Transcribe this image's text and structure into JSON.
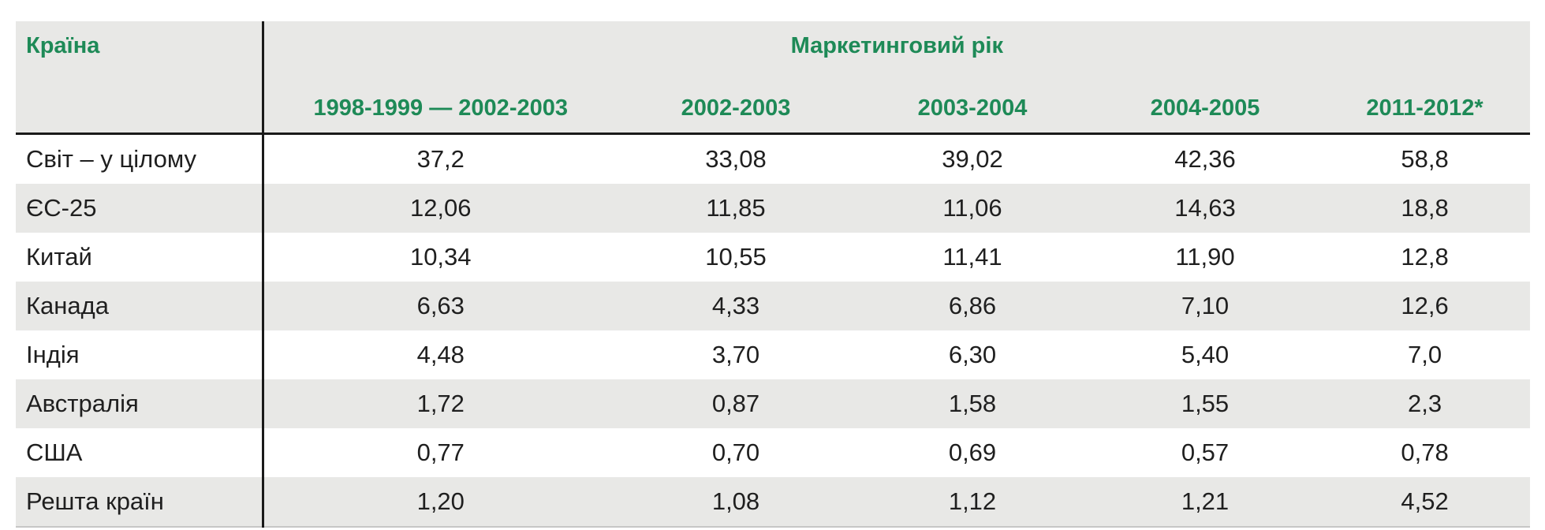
{
  "table": {
    "country_header": "Країна",
    "group_header": "Маркетинговий рік",
    "year_headers": [
      "1998-1999 — 2002-2003",
      "2002-2003",
      "2003-2004",
      "2004-2005",
      "2011-2012*"
    ],
    "rows": [
      {
        "country": "Світ – у цілому",
        "values": [
          "37,2",
          "33,08",
          "39,02",
          "42,36",
          "58,8"
        ]
      },
      {
        "country": "ЄС-25",
        "values": [
          "12,06",
          "11,85",
          "11,06",
          "14,63",
          "18,8"
        ]
      },
      {
        "country": "Китай",
        "values": [
          "10,34",
          "10,55",
          "11,41",
          "11,90",
          "12,8"
        ]
      },
      {
        "country": "Канада",
        "values": [
          "6,63",
          "4,33",
          "6,86",
          "7,10",
          "12,6"
        ]
      },
      {
        "country": "Індія",
        "values": [
          "4,48",
          "3,70",
          "6,30",
          "5,40",
          "7,0"
        ]
      },
      {
        "country": "Австралія",
        "values": [
          "1,72",
          "0,87",
          "1,58",
          "1,55",
          "2,3"
        ]
      },
      {
        "country": "США",
        "values": [
          "0,77",
          "0,70",
          "0,69",
          "0,57",
          "0,78"
        ]
      },
      {
        "country": "Решта країн",
        "values": [
          "1,20",
          "1,08",
          "1,12",
          "1,21",
          "4,52"
        ]
      }
    ]
  },
  "colors": {
    "header_green": "#1e8a57",
    "band_gray": "#e8e8e6",
    "rule_black": "#1a1a1a",
    "text": "#1f1f1f",
    "bottom_rule_gray": "#c6c6c6"
  },
  "chart_data": {
    "type": "table",
    "title": "Маркетинговий рік",
    "row_dimension_label": "Країна",
    "categories": [
      "1998-1999 — 2002-2003",
      "2002-2003",
      "2003-2004",
      "2004-2005",
      "2011-2012*"
    ],
    "series": [
      {
        "name": "Світ – у цілому",
        "values": [
          37.2,
          33.08,
          39.02,
          42.36,
          58.8
        ]
      },
      {
        "name": "ЄС-25",
        "values": [
          12.06,
          11.85,
          11.06,
          14.63,
          18.8
        ]
      },
      {
        "name": "Китай",
        "values": [
          10.34,
          10.55,
          11.41,
          11.9,
          12.8
        ]
      },
      {
        "name": "Канада",
        "values": [
          6.63,
          4.33,
          6.86,
          7.1,
          12.6
        ]
      },
      {
        "name": "Індія",
        "values": [
          4.48,
          3.7,
          6.3,
          5.4,
          7.0
        ]
      },
      {
        "name": "Австралія",
        "values": [
          1.72,
          0.87,
          1.58,
          1.55,
          2.3
        ]
      },
      {
        "name": "США",
        "values": [
          0.77,
          0.7,
          0.69,
          0.57,
          0.78
        ]
      },
      {
        "name": "Решта країн",
        "values": [
          1.2,
          1.08,
          1.12,
          1.21,
          4.52
        ]
      }
    ],
    "notes": "Decimal comma formatting; asterisk on 2011-2012 column header"
  }
}
